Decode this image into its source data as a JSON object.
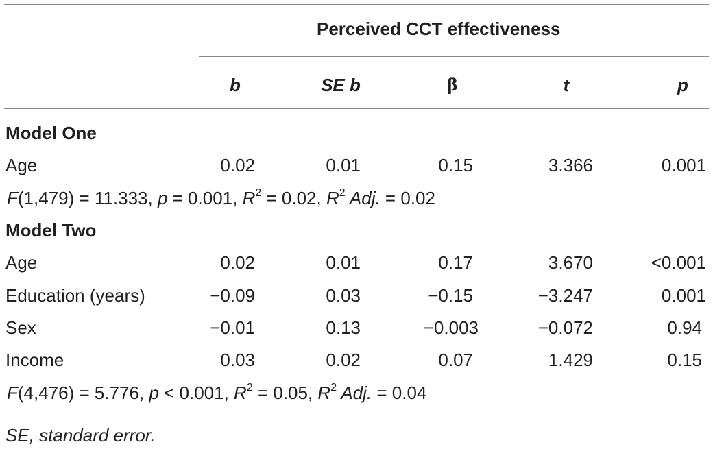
{
  "table": {
    "group_header": "Perceived CCT effectiveness",
    "columns": [
      "b",
      "SE b",
      "β",
      "t",
      "p"
    ],
    "model_one": {
      "title": "Model One",
      "rows": [
        {
          "label": "Age",
          "b": "0.02",
          "se_b": "0.01",
          "beta": "0.15",
          "t": "3.366",
          "p": "0.001"
        }
      ],
      "stats": {
        "f_label": "F",
        "f_df": "(1,479) = 11.333, ",
        "p_label": "p",
        "p_val": " = 0.001, ",
        "r_label": "R",
        "r_sup": "2",
        "r_val": " = 0.02, ",
        "radj_label": "R",
        "radj_sup": "2",
        "adj_label": " Adj.",
        "radj_val": " = 0.02"
      }
    },
    "model_two": {
      "title": "Model Two",
      "rows": [
        {
          "label": "Age",
          "b": "0.02",
          "se_b": "0.01",
          "beta": "0.17",
          "t": "3.670",
          "p": "<0.001"
        },
        {
          "label": "Education (years)",
          "b": "−0.09",
          "se_b": "0.03",
          "beta": "−0.15",
          "t": "−3.247",
          "p": "0.001"
        },
        {
          "label": "Sex",
          "b": "−0.01",
          "se_b": "0.13",
          "beta": "−0.003",
          "t": "−0.072",
          "p": "0.94"
        },
        {
          "label": "Income",
          "b": "0.03",
          "se_b": "0.02",
          "beta": "0.07",
          "t": "1.429",
          "p": "0.15"
        }
      ],
      "stats": {
        "f_label": "F",
        "f_df": "(4,476) = 5.776, ",
        "p_label": "p",
        "p_val": " < 0.001, ",
        "r_label": "R",
        "r_sup": "2",
        "r_val": " = 0.05, ",
        "radj_label": "R",
        "radj_sup": "2",
        "adj_label": " Adj.",
        "radj_val": " = 0.04"
      }
    },
    "footnote": "SE, standard error."
  }
}
